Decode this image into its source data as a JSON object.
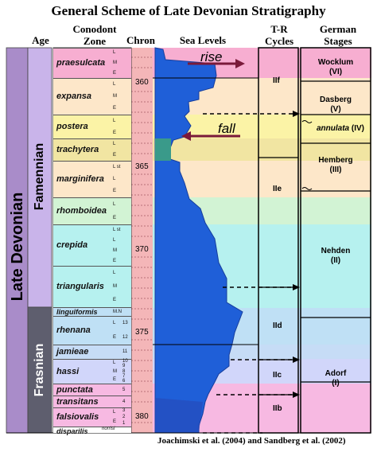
{
  "title": "General Scheme of Late Devonian Stratigraphy",
  "headers": {
    "age": "Age",
    "conodont_zone": "Conodont\nZone",
    "chron": "Chron",
    "sea_levels": "Sea Levels",
    "tr_cycles": "T-R\nCycles",
    "german_stages": "German\nStages"
  },
  "age": {
    "epoch": "Late Devonian",
    "famennian": "Famennian",
    "frasnian": "Frasnian"
  },
  "zones": [
    {
      "name": "praesulcata",
      "subs": [
        "L",
        "M",
        "E"
      ]
    },
    {
      "name": "expansa",
      "subs": [
        "L",
        "M",
        "E"
      ]
    },
    {
      "name": "postera",
      "subs": [
        "L",
        "E"
      ]
    },
    {
      "name": "trachytera",
      "subs": [
        "L",
        "E"
      ]
    },
    {
      "name": "marginifera",
      "subs": [
        "L st",
        "L",
        "E"
      ]
    },
    {
      "name": "rhomboidea",
      "subs": [
        "L",
        "E"
      ]
    },
    {
      "name": "crepida",
      "subs": [
        "L st",
        "L",
        "M",
        "E"
      ]
    },
    {
      "name": "triangularis",
      "subs": [
        "L",
        "M",
        "E"
      ]
    },
    {
      "name": "linguiformis",
      "subs": [
        "M.N"
      ]
    },
    {
      "name": "rhenana",
      "subs": [
        "L",
        "E"
      ],
      "nums": [
        "13",
        "12"
      ]
    },
    {
      "name": "jamieae",
      "subs": [],
      "nums": [
        "11"
      ]
    },
    {
      "name": "hassi",
      "subs": [
        "L",
        "M",
        "E"
      ],
      "nums": [
        "10",
        "9",
        "8",
        "7",
        "6"
      ]
    },
    {
      "name": "punctata",
      "subs": [],
      "nums": [
        "5"
      ]
    },
    {
      "name": "transitans",
      "subs": [],
      "nums": [
        "4"
      ]
    },
    {
      "name": "falsiovalis",
      "subs": [
        "L",
        "E"
      ],
      "nums": [
        "3",
        "2",
        "1"
      ]
    },
    {
      "name": "disparilis",
      "subs": []
    }
  ],
  "norrisi_label": "norrisi",
  "chron_ticks": [
    "360",
    "365",
    "370",
    "375",
    "380"
  ],
  "sea_levels": {
    "rise": "rise",
    "fall": "fall"
  },
  "tr_cycles": [
    "IIf",
    "IIe",
    "IId",
    "IIc",
    "IIb"
  ],
  "stages": [
    {
      "name": "Wocklum",
      "num": "(VI)"
    },
    {
      "name": "Dasberg",
      "num": "(V)"
    },
    {
      "name": "annulata",
      "num": "(IV)"
    },
    {
      "name": "Hemberg",
      "num": "(III)"
    },
    {
      "name": "Nehden",
      "num": "(II)"
    },
    {
      "name": "Adorf",
      "num": "(I)"
    }
  ],
  "footer": "Joachimski et al. (2004) and Sandberg et al. (2002)",
  "colors": {
    "pink": "#f7aed1",
    "yellow": "#fbf3a6",
    "peach": "#fde7c9",
    "green": "#d2f3d4",
    "cyan": "#b6f1ef",
    "lavender": "#d1d6fa",
    "lightblue": "#bfe0f5",
    "ocean": "#1f5fd8",
    "ocean_dark": "#2747b8",
    "famennian": "#c9b4ea",
    "epoch": "#a98cc9",
    "frasnian": "#5e5e6e",
    "chron": "#f4b6b8",
    "arrow": "#7a1a3a"
  }
}
